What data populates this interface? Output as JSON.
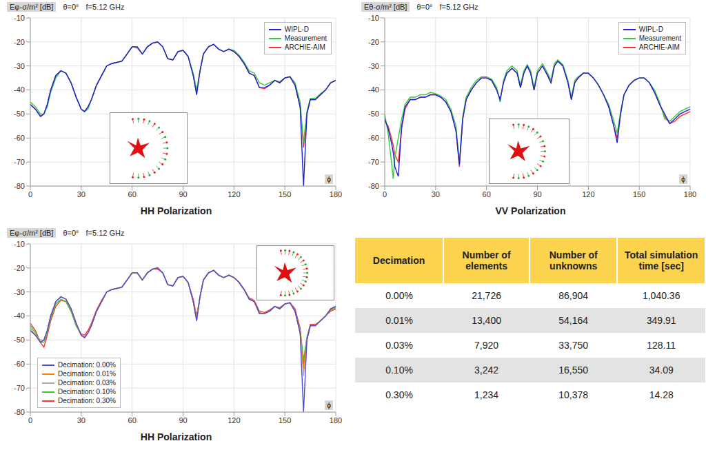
{
  "chart_data": [
    {
      "type": "line",
      "title": "HH Polarization",
      "y_label": "Eφ-σ/m² [dB]",
      "x_label": "ϕ",
      "annotations": [
        "θ=0°",
        "f=5.12 GHz"
      ],
      "grid": true,
      "legend": "top-right",
      "xlim": [
        0,
        180
      ],
      "xticks": [
        0,
        30,
        60,
        90,
        120,
        150,
        180
      ],
      "ylim": [
        -80,
        -10
      ],
      "yticks": [
        -80,
        -70,
        -60,
        -50,
        -40,
        -30,
        -20,
        -10
      ],
      "x": [
        0,
        3,
        6,
        8,
        10,
        12,
        15,
        18,
        21,
        24,
        27,
        30,
        32,
        34,
        36,
        39,
        42,
        45,
        48,
        51,
        54,
        57,
        60,
        63,
        66,
        69,
        72,
        75,
        78,
        81,
        84,
        87,
        90,
        93,
        96,
        98,
        100,
        102,
        105,
        108,
        111,
        114,
        117,
        120,
        123,
        126,
        129,
        132,
        135,
        138,
        141,
        144,
        147,
        150,
        153,
        156,
        159,
        161,
        163,
        165,
        168,
        171,
        174,
        177,
        180
      ],
      "series": [
        {
          "name": "WIPL-D",
          "color": "#1f1fdc",
          "values": [
            -46,
            -48,
            -51,
            -50,
            -46,
            -40,
            -34,
            -32,
            -33,
            -37,
            -43,
            -48,
            -49,
            -47,
            -44,
            -38,
            -34,
            -30,
            -29,
            -28.5,
            -28,
            -25,
            -22,
            -22,
            -25,
            -22,
            -20.5,
            -20,
            -22,
            -27,
            -27.5,
            -24,
            -23.5,
            -26,
            -34,
            -42,
            -32,
            -25,
            -22,
            -21,
            -23,
            -24,
            -23,
            -24,
            -26,
            -29,
            -33,
            -34,
            -39,
            -39,
            -38,
            -36,
            -37,
            -35,
            -34.5,
            -38,
            -47,
            -80,
            -50,
            -44,
            -44,
            -42,
            -40,
            -37,
            -36
          ]
        },
        {
          "name": "Measurement",
          "color": "#2ecc40",
          "values": [
            -45,
            -47,
            -50,
            -50,
            -47,
            -41,
            -35,
            -32,
            -33,
            -37,
            -43,
            -48,
            -49,
            -48,
            -44,
            -38,
            -34,
            -30,
            -29,
            -28.5,
            -28,
            -25,
            -22,
            -22,
            -25,
            -22,
            -20.5,
            -20,
            -22,
            -27,
            -27.5,
            -24,
            -23.5,
            -26,
            -33,
            -40,
            -32,
            -25,
            -22,
            -21,
            -23,
            -24,
            -23,
            -23.5,
            -25.5,
            -28.5,
            -32,
            -33,
            -37,
            -38,
            -37,
            -36,
            -36.5,
            -35,
            -34.5,
            -37,
            -45,
            -62,
            -49,
            -43.5,
            -43.5,
            -41.5,
            -40,
            -37,
            -36
          ]
        },
        {
          "name": "ARCHIE-AIM",
          "color": "#ff3030",
          "values": [
            -46,
            -48,
            -51,
            -50,
            -46,
            -40,
            -34,
            -32,
            -33,
            -37,
            -43,
            -48,
            -49,
            -47,
            -44,
            -38,
            -34,
            -30,
            -29,
            -28.5,
            -28,
            -25,
            -22,
            -22.5,
            -25,
            -22,
            -20.5,
            -20,
            -22,
            -27,
            -27.5,
            -24,
            -23.5,
            -26,
            -34,
            -41,
            -32,
            -25,
            -22,
            -21,
            -23,
            -24,
            -23,
            -24,
            -26,
            -29,
            -33,
            -34,
            -39,
            -39.5,
            -38,
            -36,
            -37,
            -35,
            -34.5,
            -38,
            -47,
            -64,
            -50,
            -44,
            -44,
            -42,
            -40,
            -37,
            -36
          ]
        }
      ]
    },
    {
      "type": "line",
      "title": "VV Polarization",
      "y_label": "Eθ-σ/m² [dB]",
      "x_label": "ϕ",
      "annotations": [
        "θ=0°",
        "f=5.12 GHz"
      ],
      "grid": true,
      "legend": "top-right",
      "xlim": [
        0,
        180
      ],
      "xticks": [
        0,
        30,
        60,
        90,
        120,
        150,
        180
      ],
      "ylim": [
        -80,
        -10
      ],
      "yticks": [
        -80,
        -70,
        -60,
        -50,
        -40,
        -30,
        -20,
        -10
      ],
      "x": [
        0,
        2,
        4,
        5,
        6,
        8,
        10,
        12,
        15,
        18,
        21,
        24,
        27,
        30,
        33,
        36,
        39,
        42,
        44,
        46,
        48,
        51,
        54,
        57,
        60,
        63,
        66,
        68,
        70,
        72,
        75,
        78,
        80,
        82,
        84,
        86,
        88,
        90,
        93,
        96,
        98,
        100,
        102,
        105,
        108,
        110,
        112,
        114,
        117,
        120,
        123,
        126,
        129,
        132,
        135,
        137,
        139,
        141,
        144,
        147,
        150,
        153,
        156,
        159,
        162,
        165,
        168,
        171,
        174,
        177,
        180
      ],
      "series": [
        {
          "name": "WIPL-D",
          "color": "#1f1fdc",
          "values": [
            -52,
            -56,
            -62,
            -66,
            -72,
            -76,
            -55,
            -47,
            -44,
            -44,
            -43,
            -43,
            -42,
            -42,
            -43,
            -45,
            -49,
            -57,
            -71,
            -52,
            -44,
            -40,
            -37,
            -35,
            -35,
            -36,
            -40,
            -44,
            -37,
            -33,
            -31,
            -33,
            -39,
            -33,
            -30,
            -33,
            -40,
            -33,
            -30,
            -34,
            -37,
            -30,
            -28,
            -30,
            -37,
            -44,
            -37,
            -35,
            -33,
            -33,
            -35,
            -38,
            -42,
            -47,
            -55,
            -62,
            -50,
            -42,
            -38,
            -36,
            -35,
            -35,
            -37,
            -41,
            -46,
            -50,
            -54,
            -52,
            -50,
            -49,
            -48
          ]
        },
        {
          "name": "Measurement",
          "color": "#2ecc40",
          "values": [
            -50,
            -58,
            -70,
            -77,
            -68,
            -60,
            -52,
            -46,
            -43,
            -43,
            -42,
            -42,
            -41,
            -41.5,
            -42.5,
            -44,
            -48,
            -55,
            -70,
            -51,
            -43,
            -39,
            -36,
            -34.5,
            -34.5,
            -35.5,
            -39,
            -45,
            -36,
            -32,
            -30,
            -32,
            -38,
            -32,
            -29.5,
            -32,
            -39,
            -32,
            -29,
            -33,
            -36,
            -29,
            -27.5,
            -29.5,
            -36,
            -43,
            -36,
            -34.5,
            -33,
            -33,
            -35,
            -38,
            -42,
            -46,
            -53,
            -58,
            -49,
            -42,
            -38,
            -36,
            -35,
            -35,
            -37,
            -40,
            -45,
            -52,
            -53,
            -51,
            -49,
            -48,
            -47
          ]
        },
        {
          "name": "ARCHIE-AIM",
          "color": "#ff3030",
          "values": [
            -53,
            -55,
            -60,
            -63,
            -67,
            -70,
            -56,
            -48,
            -44,
            -44,
            -43,
            -43,
            -42,
            -42,
            -43,
            -45,
            -49,
            -57,
            -72,
            -52,
            -44,
            -40,
            -37,
            -35,
            -35,
            -36,
            -40,
            -44,
            -37,
            -33,
            -31,
            -33,
            -39,
            -33,
            -30,
            -33,
            -40,
            -33,
            -30,
            -34,
            -37,
            -30,
            -28,
            -30,
            -37,
            -44,
            -37,
            -35,
            -33,
            -33,
            -35,
            -38,
            -42,
            -47,
            -55,
            -60,
            -50,
            -42,
            -38,
            -36,
            -35,
            -35,
            -37,
            -41,
            -46,
            -51,
            -54,
            -53,
            -51,
            -50,
            -49
          ]
        }
      ]
    },
    {
      "type": "line",
      "title": "HH Polarization",
      "y_label": "Eφ-σ/m² [dB]",
      "x_label": "ϕ",
      "annotations": [
        "θ=0°",
        "f=5.12 GHz"
      ],
      "grid": true,
      "legend": "bottom-left",
      "xlim": [
        0,
        180
      ],
      "xticks": [
        0,
        30,
        60,
        90,
        120,
        150,
        180
      ],
      "ylim": [
        -80,
        -10
      ],
      "yticks": [
        -80,
        -70,
        -60,
        -50,
        -40,
        -30,
        -20,
        -10
      ],
      "x": [
        0,
        3,
        6,
        8,
        10,
        12,
        15,
        18,
        21,
        24,
        27,
        30,
        32,
        34,
        36,
        39,
        42,
        45,
        48,
        51,
        54,
        57,
        60,
        63,
        66,
        69,
        72,
        75,
        78,
        81,
        84,
        87,
        90,
        93,
        96,
        98,
        100,
        102,
        105,
        108,
        111,
        114,
        117,
        120,
        123,
        126,
        129,
        132,
        135,
        138,
        141,
        144,
        147,
        150,
        153,
        156,
        159,
        161,
        163,
        165,
        168,
        171,
        174,
        177,
        180
      ],
      "series": [
        {
          "name": "Decimation: 0.00%",
          "color": "#4b4be0",
          "values": [
            -46,
            -48,
            -51,
            -50,
            -46,
            -40,
            -34,
            -32,
            -33,
            -37,
            -43,
            -48,
            -49,
            -47,
            -44,
            -38,
            -34,
            -30,
            -29,
            -28.5,
            -28,
            -25,
            -22,
            -22,
            -25,
            -22,
            -20.5,
            -20,
            -22,
            -27,
            -27.5,
            -24,
            -23.5,
            -26,
            -34,
            -42,
            -32,
            -25,
            -22,
            -21,
            -23,
            -24,
            -23,
            -24,
            -26,
            -29,
            -33,
            -34,
            -39,
            -39,
            -38,
            -36,
            -37,
            -35,
            -34.5,
            -38,
            -47,
            -80,
            -50,
            -44,
            -44,
            -42,
            -40,
            -37,
            -36
          ]
        },
        {
          "name": "Decimation: 0.01%",
          "color": "#ff8000",
          "values": [
            -46,
            -48,
            -51,
            -50,
            -46,
            -40,
            -34,
            -32,
            -33,
            -37,
            -43,
            -48,
            -49,
            -47,
            -44,
            -38,
            -34,
            -30,
            -29,
            -28.5,
            -28,
            -25,
            -22,
            -22,
            -25,
            -22,
            -20.5,
            -20,
            -22,
            -27,
            -27.5,
            -24,
            -23.5,
            -26,
            -34,
            -41,
            -32,
            -25,
            -22,
            -21,
            -23,
            -24,
            -23,
            -24,
            -26,
            -29,
            -33,
            -34,
            -39,
            -39,
            -38,
            -36,
            -37,
            -35,
            -34.5,
            -38,
            -47,
            -62,
            -50,
            -44,
            -44,
            -42,
            -40,
            -37,
            -36
          ]
        },
        {
          "name": "Decimation: 0.03%",
          "color": "#aaaaaa",
          "values": [
            -45,
            -48,
            -50,
            -50,
            -46,
            -40,
            -34,
            -32,
            -33,
            -37,
            -43,
            -48,
            -49,
            -47,
            -44,
            -38,
            -34,
            -30,
            -29,
            -28.5,
            -28,
            -25,
            -22,
            -22,
            -25,
            -22,
            -20.5,
            -20,
            -22,
            -27,
            -27.5,
            -24,
            -23.5,
            -26,
            -34,
            -42,
            -32,
            -25,
            -22,
            -21,
            -23,
            -24,
            -23,
            -24,
            -26,
            -29,
            -33,
            -34,
            -39,
            -39,
            -38,
            -36,
            -37,
            -35,
            -34.5,
            -38,
            -47,
            -65,
            -50,
            -44,
            -44,
            -42,
            -40,
            -37,
            -36
          ]
        },
        {
          "name": "Decimation: 0.10%",
          "color": "#33cc33",
          "values": [
            -44,
            -47,
            -51,
            -51,
            -47,
            -41,
            -35,
            -33,
            -34,
            -38,
            -44,
            -48,
            -49,
            -47,
            -44,
            -38,
            -34,
            -30,
            -29,
            -28.5,
            -28,
            -25,
            -22,
            -22,
            -25,
            -22,
            -20.5,
            -20,
            -22,
            -27,
            -27.5,
            -24,
            -23.5,
            -26,
            -34,
            -41,
            -32,
            -25,
            -22,
            -21,
            -23,
            -24,
            -23,
            -24,
            -26,
            -29,
            -33,
            -34,
            -38.5,
            -39,
            -38,
            -36,
            -37,
            -35,
            -34.5,
            -38,
            -46,
            -58,
            -49,
            -44,
            -44,
            -42,
            -40,
            -37.5,
            -36.5
          ]
        },
        {
          "name": "Decimation: 0.30%",
          "color": "#ff3333",
          "values": [
            -43,
            -46,
            -51,
            -53,
            -48,
            -42,
            -36,
            -33.5,
            -34,
            -38,
            -44,
            -47.5,
            -48,
            -46,
            -43,
            -37.5,
            -33.5,
            -30,
            -29,
            -28.5,
            -28,
            -25,
            -22,
            -22,
            -25,
            -22,
            -20.5,
            -20.5,
            -22,
            -27,
            -27.5,
            -24,
            -23.5,
            -26,
            -33,
            -40,
            -32,
            -25,
            -22,
            -21,
            -23,
            -24,
            -23,
            -24,
            -26,
            -29,
            -32.5,
            -33.5,
            -38,
            -38.5,
            -37.5,
            -36,
            -36.5,
            -35,
            -34.5,
            -37,
            -45,
            -60,
            -49,
            -43.5,
            -43.5,
            -42,
            -40,
            -38,
            -37
          ]
        }
      ]
    }
  ],
  "table": {
    "header": [
      "Decimation",
      "Number of elements",
      "Number of unknowns",
      "Total simulation time [sec]"
    ],
    "rows": [
      [
        "0.00%",
        "21,726",
        "86,904",
        "1,040.36"
      ],
      [
        "0.01%",
        "13,400",
        "54,164",
        "349.91"
      ],
      [
        "0.03%",
        "7,920",
        "33,750",
        "128.11"
      ],
      [
        "0.10%",
        "3,242",
        "16,550",
        "34.09"
      ],
      [
        "0.30%",
        "1,234",
        "10,378",
        "14.28"
      ]
    ]
  }
}
